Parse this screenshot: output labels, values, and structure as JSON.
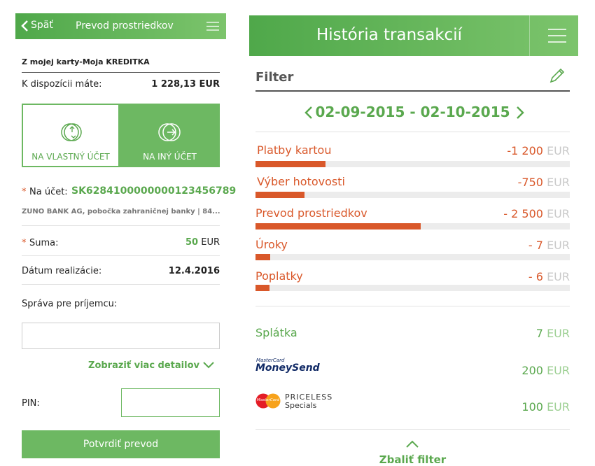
{
  "left_screen": {
    "header": {
      "back": "Späť",
      "title": "Prevod prostriedkov"
    },
    "source_card": "Z mojej karty-Moja KREDITKA",
    "available": {
      "label": "K dispozícii máte:",
      "value": "1 228,13 EUR"
    },
    "tabs": [
      "NA VLASTNÝ ÚČET",
      "NA INÝ ÚČET"
    ],
    "account": {
      "required": "*",
      "label": "Na účet:",
      "value": "SK6284100000000123456789"
    },
    "bank": "ZUNO BANK AG, pobočka zahraničnej banky | 84...",
    "amount": {
      "required": "*",
      "label": "Suma:",
      "value": "50",
      "currency": "EUR"
    },
    "date": {
      "label": "Dátum realizácie:",
      "value": "12.4.2016"
    },
    "message_label": "Správa pre príjemcu:",
    "more_details": "Zobraziť viac detailov",
    "pin_label": "PIN:",
    "confirm_button": "Potvrdiť prevod"
  },
  "right_screen": {
    "header_title": "História transakcií",
    "filter_label": "Filter",
    "date_range": "02-09-2015 - 02-10-2015",
    "expenses": [
      {
        "label": "Platby kartou",
        "amount": "-1 200",
        "currency": "EUR"
      },
      {
        "label": "Výber hotovosti",
        "amount": "-750",
        "currency": "EUR"
      },
      {
        "label": "Prevod prostriedkov",
        "amount": "- 2 500",
        "currency": "EUR"
      },
      {
        "label": "Úroky",
        "amount": "- 7",
        "currency": "EUR"
      },
      {
        "label": "Poplatky",
        "amount": "- 6",
        "currency": "EUR"
      }
    ],
    "income": [
      {
        "label": "Splátka",
        "amount": "7",
        "currency": "EUR"
      },
      {
        "logo": [
          "MasterCard",
          "MoneySend"
        ],
        "amount": "200",
        "currency": "EUR"
      },
      {
        "logo": [
          "MasterCard",
          "PRICELESS",
          "Specials"
        ],
        "amount": "100",
        "currency": "EUR"
      }
    ],
    "collapse_filter": "Zbaliť filter"
  }
}
